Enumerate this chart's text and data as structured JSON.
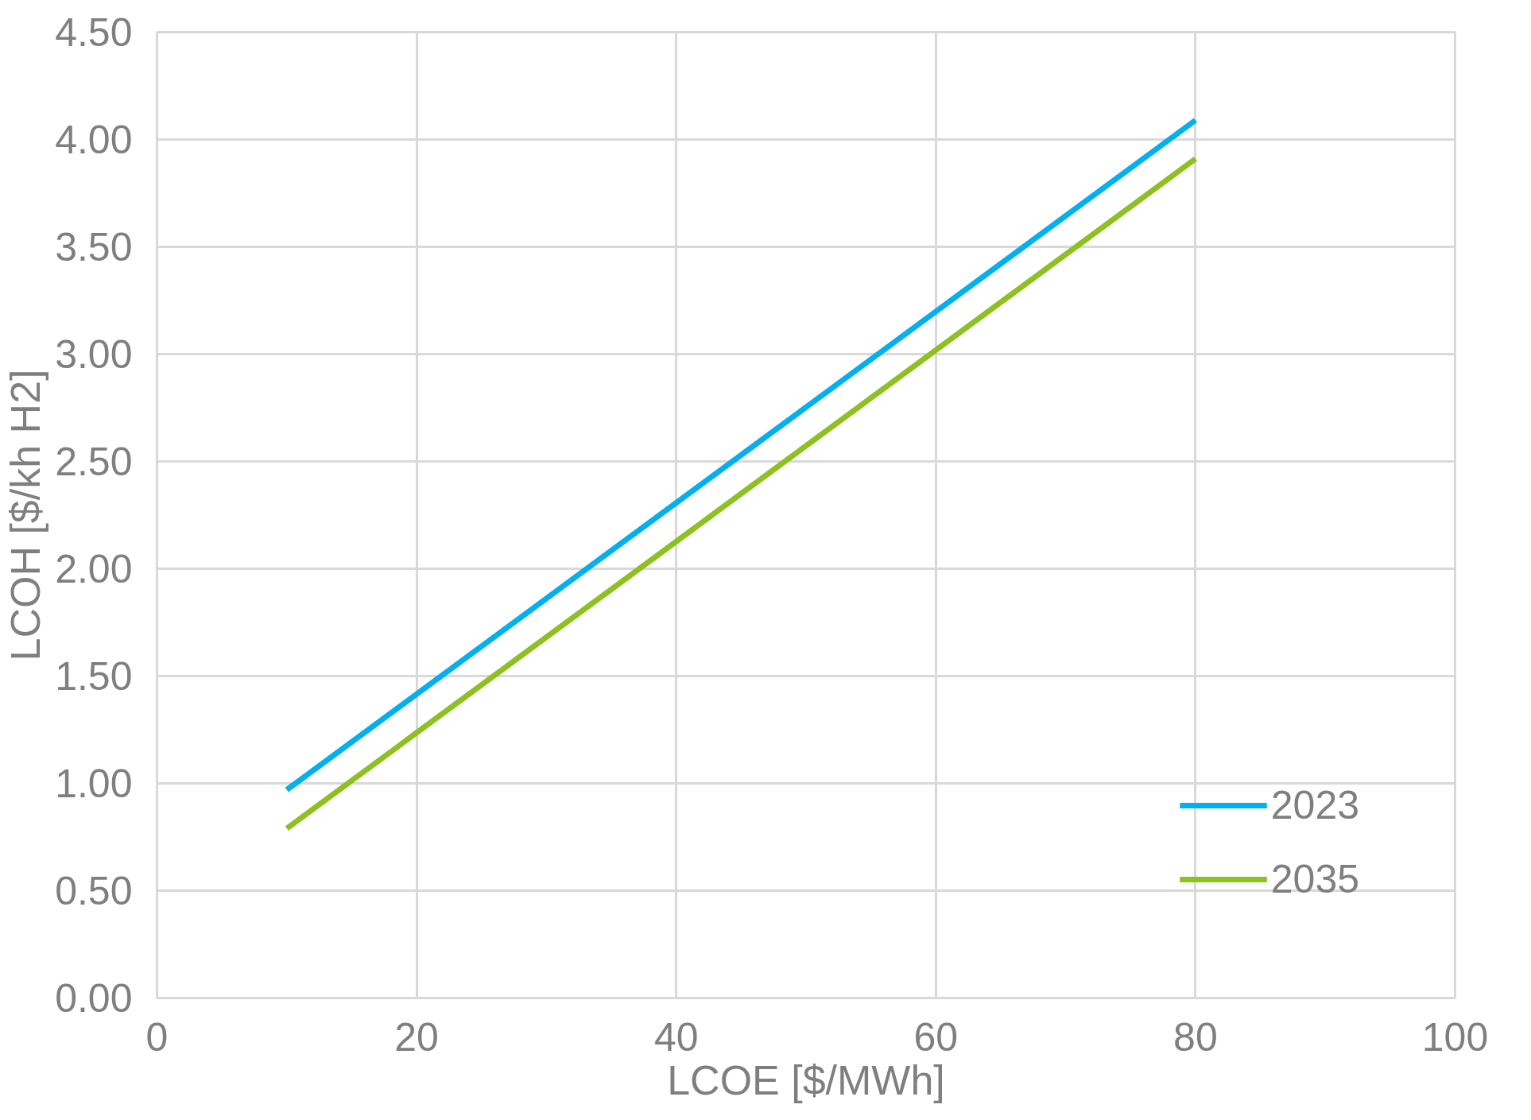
{
  "chart_data": {
    "type": "line",
    "xlabel": "LCOE [$/MWh]",
    "ylabel": "LCOH [$/kh H2]",
    "x": [
      10,
      80
    ],
    "series": [
      {
        "name": "2023",
        "color": "#00b0f0",
        "values": [
          0.97,
          4.09
        ]
      },
      {
        "name": "2035",
        "color": "#8cc11f",
        "values": [
          0.79,
          3.91
        ]
      }
    ],
    "xlim": [
      0,
      100
    ],
    "xticks": [
      0,
      20,
      40,
      60,
      80,
      100
    ],
    "ylim": [
      0,
      4.5
    ],
    "yticks": [
      {
        "value": 0,
        "label": "0.00"
      },
      {
        "value": 0.5,
        "label": "0.50"
      },
      {
        "value": 1,
        "label": "1.00"
      },
      {
        "value": 1.5,
        "label": "1.50"
      },
      {
        "value": 2,
        "label": "2.00"
      },
      {
        "value": 2.5,
        "label": "2.50"
      },
      {
        "value": 3,
        "label": "3.00"
      },
      {
        "value": 3.5,
        "label": "3.50"
      },
      {
        "value": 4,
        "label": "4.00"
      },
      {
        "value": 4.5,
        "label": "4.50"
      }
    ],
    "grid": true,
    "legend": "bottom right",
    "marker": "none",
    "line_style": "solid"
  }
}
